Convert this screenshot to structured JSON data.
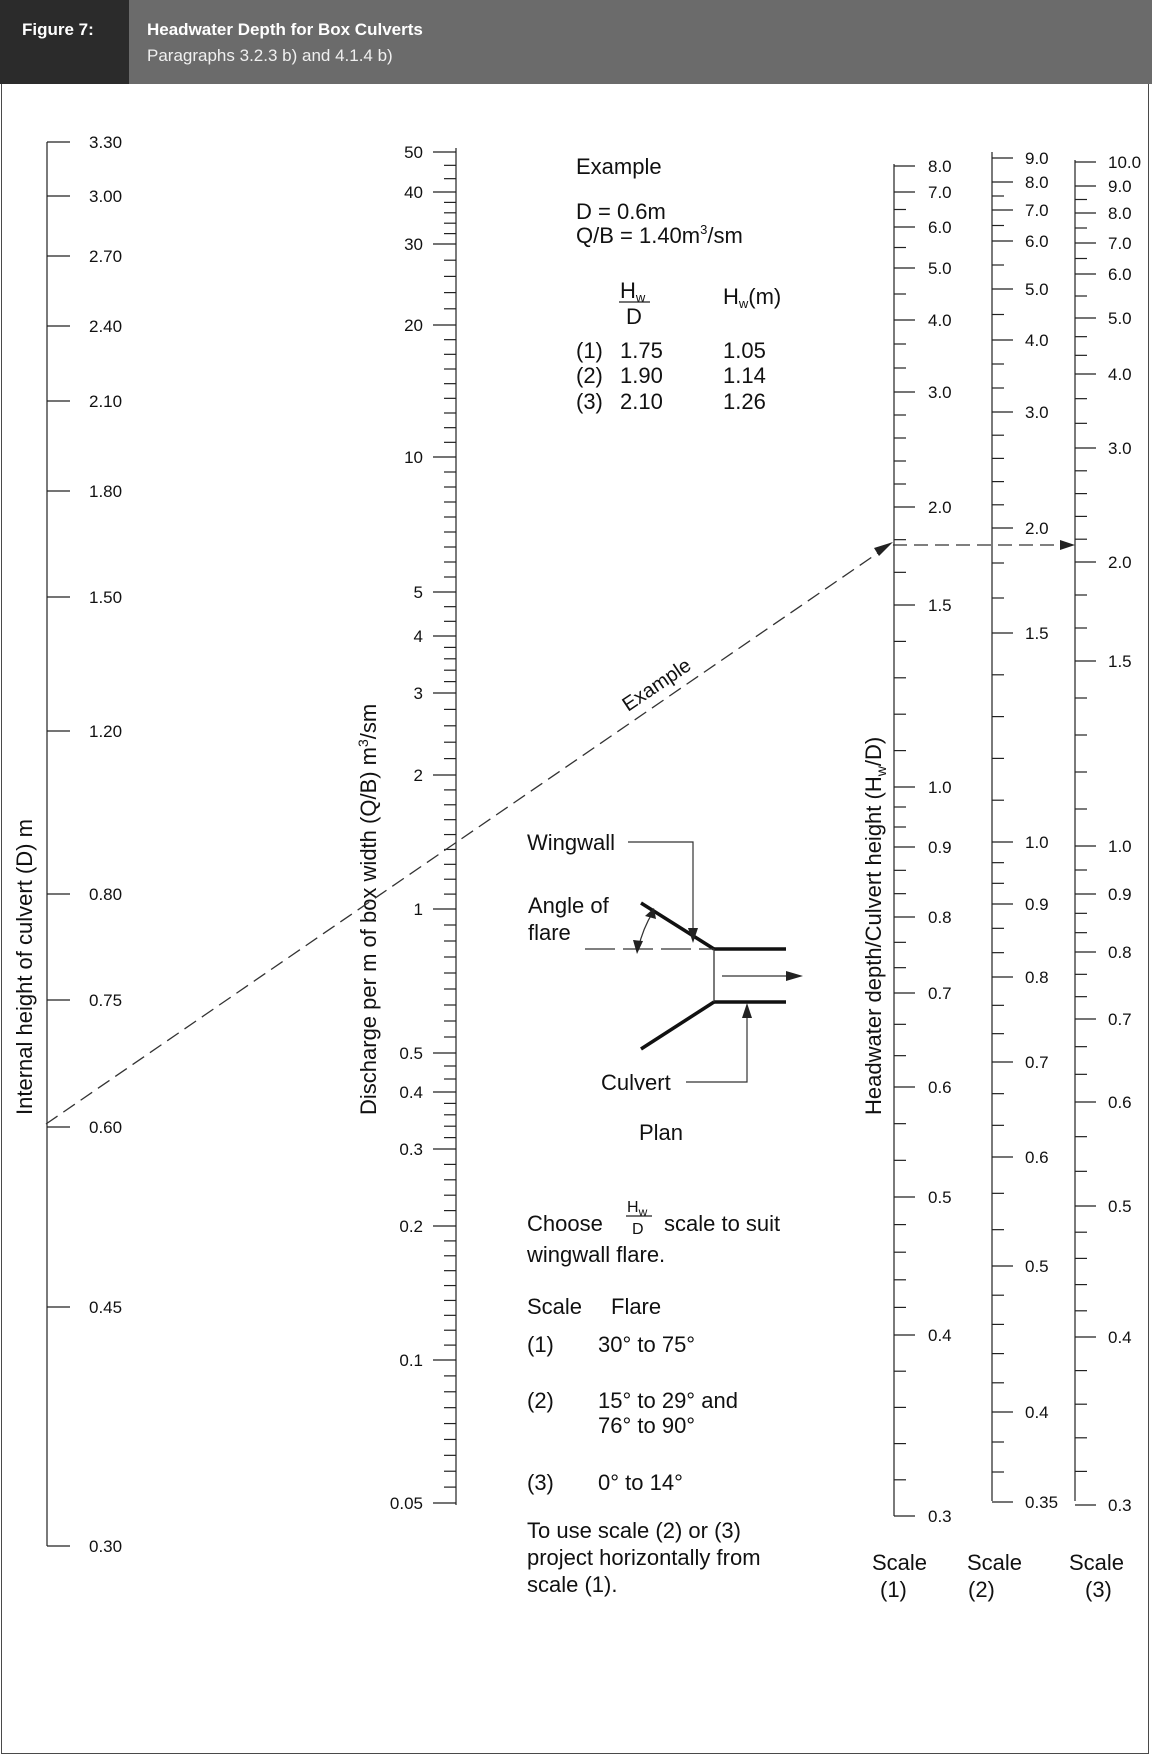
{
  "header": {
    "figure_label": "Figure 7:",
    "title": "Headwater Depth for Box Culverts",
    "subtitle": "Paragraphs 3.2.3 b) and 4.1.4 b)"
  },
  "axes": {
    "d_label": "Internal height of culvert (D) m",
    "q_label_main": "Discharge per m of box width (Q/B) m",
    "q_label_sup": "3",
    "q_label_tail": "/sm",
    "hw_label_main": "Headwater depth/Culvert height (H",
    "hw_label_sub": "w",
    "hw_label_tail": "/D)"
  },
  "scales": {
    "d_ticks": [
      "3.30",
      "3.00",
      "2.70",
      "2.40",
      "2.10",
      "1.80",
      "1.50",
      "1.20",
      "0.80",
      "0.75",
      "0.60",
      "0.45",
      "0.30"
    ],
    "q_ticks": [
      "50",
      "40",
      "30",
      "20",
      "10",
      "5",
      "4",
      "3",
      "2",
      "1",
      "0.5",
      "0.4",
      "0.3",
      "0.2",
      "0.1",
      "0.05"
    ],
    "s1_ticks": [
      "8.0",
      "7.0",
      "6.0",
      "5.0",
      "4.0",
      "3.0",
      "2.0",
      "1.5",
      "1.0",
      "0.9",
      "0.8",
      "0.7",
      "0.6",
      "0.5",
      "0.4",
      "0.3"
    ],
    "s2_ticks": [
      "9.0",
      "8.0",
      "7.0",
      "6.0",
      "5.0",
      "4.0",
      "3.0",
      "2.0",
      "1.5",
      "1.0",
      "0.9",
      "0.8",
      "0.7",
      "0.6",
      "0.5",
      "0.4",
      "0.35"
    ],
    "s3_ticks": [
      "10.0",
      "9.0",
      "8.0",
      "7.0",
      "6.0",
      "5.0",
      "4.0",
      "3.0",
      "2.0",
      "1.5",
      "1.0",
      "0.9",
      "0.8",
      "0.7",
      "0.6",
      "0.5",
      "0.4",
      "0.3"
    ],
    "scale_word": "Scale",
    "scale1_num": "(1)",
    "scale2_num": "(2)",
    "scale3_num": "(3)"
  },
  "example": {
    "heading": "Example",
    "d_value": "D = 0.6m",
    "qb_value_main": "Q/B = 1.40m",
    "qb_value_sup": "3",
    "qb_value_tail": "/sm",
    "col1_num": "H",
    "col1_num_sub": "w",
    "col1_den": "D",
    "col2_head": "H",
    "col2_head_sub": "w",
    "col2_head_tail": "(m)",
    "rows": [
      {
        "scale": "(1)",
        "ratio": "1.75",
        "hw": "1.05"
      },
      {
        "scale": "(2)",
        "ratio": "1.90",
        "hw": "1.14"
      },
      {
        "scale": "(3)",
        "ratio": "2.10",
        "hw": "1.26"
      }
    ],
    "line_label": "Example"
  },
  "plan": {
    "wingwall": "Wingwall",
    "angle_line1": "Angle of",
    "angle_line2": "flare",
    "culvert": "Culvert",
    "caption": "Plan"
  },
  "notes": {
    "choose_pre": "Choose",
    "frac_num": "H",
    "frac_num_sub": "w",
    "frac_den": "D",
    "choose_post": "scale to suit",
    "choose_line2": "wingwall flare.",
    "table_head_scale": "Scale",
    "table_head_flare": "Flare",
    "table_rows": [
      {
        "scale": "(1)",
        "flare": "30° to 75°",
        "flare2": ""
      },
      {
        "scale": "(2)",
        "flare": "15° to 29° and",
        "flare2": "76° to 90°"
      },
      {
        "scale": "(3)",
        "flare": "0° to 14°",
        "flare2": ""
      }
    ],
    "use_line1": "To use scale (2) or (3)",
    "use_line2": "project horizontally from",
    "use_line3": "scale (1)."
  }
}
